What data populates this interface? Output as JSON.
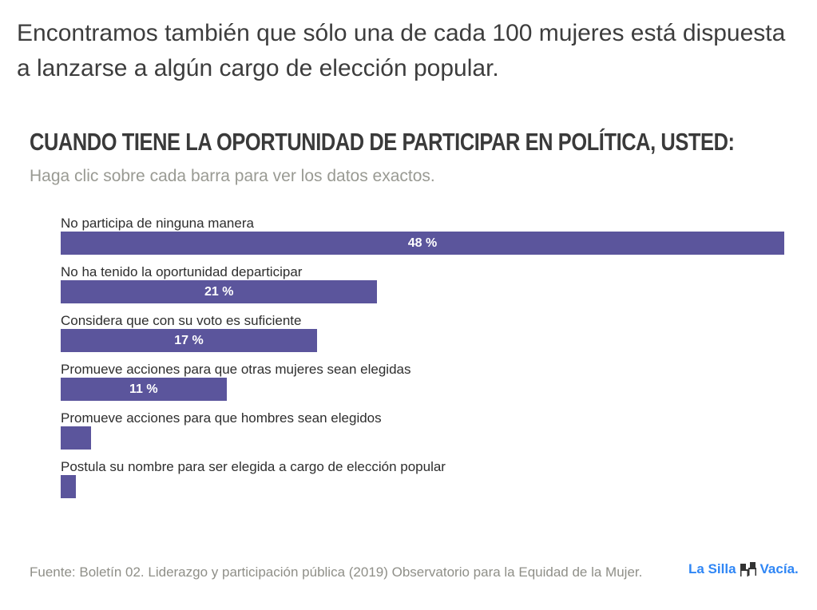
{
  "intro_text": "Encontramos también que sólo una de cada 100 mujeres está dispuesta a lanzarse a algún cargo de elección popular.",
  "chart_title": "CUANDO TIENE LA OPORTUNIDAD DE PARTICIPAR EN POLÍTICA, USTED:",
  "chart_subtitle": "Haga clic sobre cada barra para ver los datos exactos.",
  "bar_color": "#5b559c",
  "chart_data": {
    "type": "bar",
    "orientation": "horizontal",
    "title": "CUANDO TIENE LA OPORTUNIDAD DE PARTICIPAR EN POLÍTICA, USTED:",
    "subtitle": "Haga clic sobre cada barra para ver los datos exactos.",
    "xlabel": "",
    "ylabel": "",
    "unit": "%",
    "xlim": [
      0,
      48
    ],
    "grid": false,
    "categories": [
      "No participa de ninguna manera",
      "No ha tenido la oportunidad departicipar",
      "Considera que con su voto es suficiente",
      "Promueve acciones para que otras mujeres sean elegidas",
      "Promueve acciones para que hombres sean elegidos",
      "Postula su nombre para ser elegida a cargo de elección popular"
    ],
    "values": [
      48,
      21,
      17,
      11,
      2,
      1
    ],
    "value_labels": [
      "48 %",
      "21 %",
      "17 %",
      "11 %",
      "",
      ""
    ]
  },
  "footer": {
    "source": "Fuente: Boletín 02. Liderazgo y participación pública (2019) Observatorio para la Equidad de la Mujer.",
    "logo_left": "La Silla",
    "logo_right": "Vacía.",
    "logo_icon": "chairs-icon",
    "logo_color": "#2f86f5"
  }
}
